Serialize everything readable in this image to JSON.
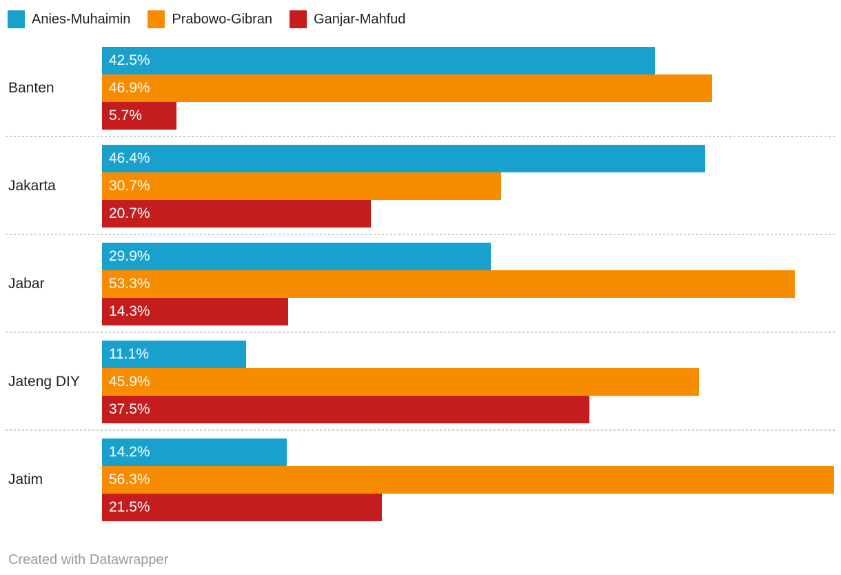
{
  "chart_data": {
    "type": "bar",
    "orientation": "horizontal",
    "grouped": true,
    "title": "",
    "xlabel": "",
    "ylabel": "",
    "xlim": [
      0,
      56.3
    ],
    "grid": false,
    "legend_position": "top-left",
    "value_suffix": "%",
    "categories": [
      "Banten",
      "Jakarta",
      "Jabar",
      "Jateng DIY",
      "Jatim"
    ],
    "series": [
      {
        "name": "Anies-Muhaimin",
        "color": "#18a1cd",
        "values": [
          42.5,
          46.4,
          29.9,
          11.1,
          14.2
        ],
        "labels": [
          "42.5%",
          "46.4%",
          "29.9%",
          "11.1%",
          "14.2%"
        ]
      },
      {
        "name": "Prabowo-Gibran",
        "color": "#f88c00",
        "values": [
          46.9,
          30.7,
          53.3,
          45.9,
          56.3
        ],
        "labels": [
          "46.9%",
          "30.7%",
          "53.3%",
          "45.9%",
          "56.3%"
        ]
      },
      {
        "name": "Ganjar-Mahfud",
        "color": "#c51d1d",
        "values": [
          5.7,
          20.7,
          14.3,
          37.5,
          21.5
        ],
        "labels": [
          "5.7%",
          "20.7%",
          "14.3%",
          "37.5%",
          "21.5%"
        ]
      }
    ],
    "ui_colors": {
      "label_text": "#1f1f1f",
      "bar_value_text": "#ffffff",
      "separator": "#cccccc",
      "attribution_text": "#9a9a9a"
    }
  },
  "footer": {
    "attribution": "Created with Datawrapper"
  }
}
